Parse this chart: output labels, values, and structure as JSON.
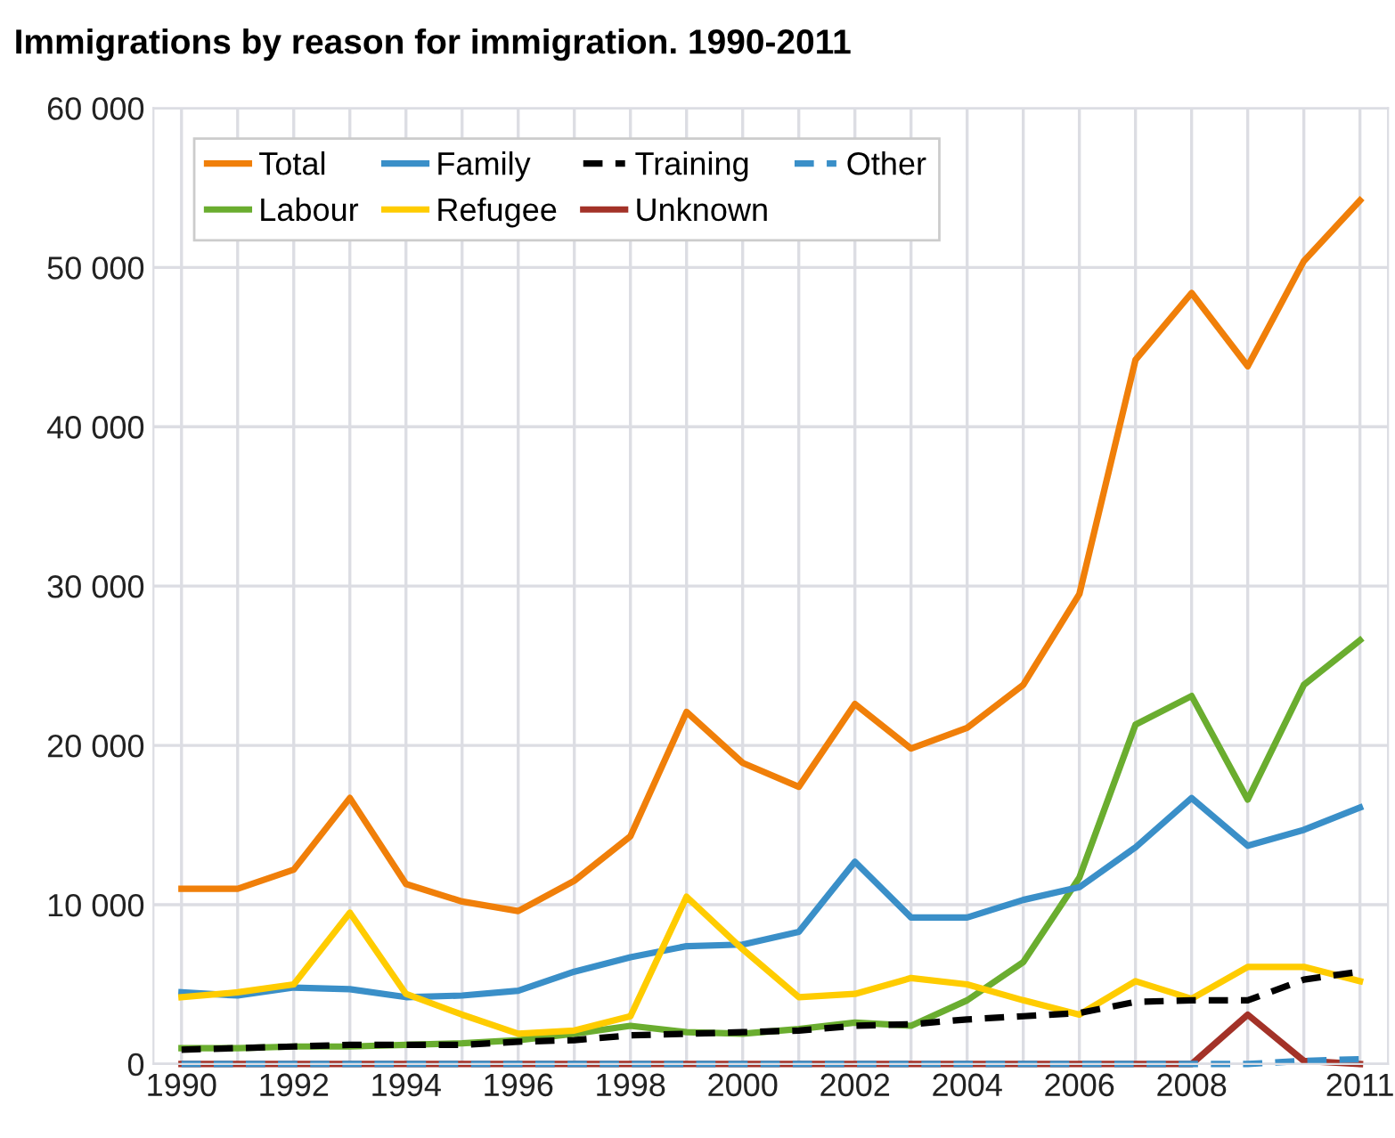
{
  "chart_data": {
    "type": "line",
    "title": "Immigrations by reason for immigration. 1990-2011",
    "x": [
      1990,
      1991,
      1992,
      1993,
      1994,
      1995,
      1996,
      1997,
      1998,
      1999,
      2000,
      2001,
      2002,
      2003,
      2004,
      2005,
      2006,
      2007,
      2008,
      2009,
      2010,
      2011
    ],
    "series": [
      {
        "name": "Total",
        "color": "#f07f09",
        "values": [
          11000,
          11000,
          12200,
          16700,
          11300,
          10200,
          9600,
          11500,
          14300,
          22100,
          18900,
          17400,
          22600,
          19800,
          21100,
          23800,
          29500,
          44200,
          48400,
          43800,
          50400,
          54200
        ]
      },
      {
        "name": "Labour",
        "color": "#6aad2f",
        "values": [
          1000,
          1000,
          1100,
          1100,
          1200,
          1300,
          1500,
          1900,
          2400,
          2000,
          1900,
          2200,
          2600,
          2400,
          4000,
          6400,
          11700,
          21300,
          23100,
          16600,
          23800,
          26600
        ]
      },
      {
        "name": "Family",
        "color": "#3a8fc8",
        "values": [
          4500,
          4300,
          4800,
          4700,
          4200,
          4300,
          4600,
          5800,
          6700,
          7400,
          7500,
          8300,
          12700,
          9200,
          9200,
          10300,
          11100,
          13600,
          16700,
          13700,
          14700,
          16100
        ]
      },
      {
        "name": "Refugee",
        "color": "#ffcc00",
        "values": [
          4200,
          4500,
          5000,
          9500,
          4400,
          3100,
          1900,
          2100,
          3000,
          10500,
          7200,
          4200,
          4400,
          5400,
          5000,
          4000,
          3100,
          5200,
          4100,
          6100,
          6100,
          5200
        ]
      },
      {
        "name": "Training",
        "color": "#000000",
        "line_style": "dashed",
        "values": [
          900,
          1000,
          1100,
          1200,
          1200,
          1200,
          1400,
          1500,
          1800,
          1900,
          2000,
          2100,
          2400,
          2500,
          2800,
          3000,
          3200,
          3900,
          4000,
          4000,
          5300,
          5800
        ]
      },
      {
        "name": "Unknown",
        "color": "#a33228",
        "values": [
          0,
          0,
          0,
          0,
          0,
          0,
          0,
          0,
          0,
          0,
          0,
          0,
          0,
          0,
          0,
          0,
          0,
          0,
          0,
          3100,
          200,
          0
        ]
      },
      {
        "name": "Other",
        "color": "#3a8fc8",
        "line_style": "dashed",
        "values": [
          0,
          0,
          0,
          0,
          0,
          0,
          0,
          0,
          0,
          0,
          0,
          0,
          0,
          0,
          0,
          0,
          0,
          0,
          0,
          0,
          200,
          300
        ]
      }
    ],
    "xlim": [
      1989.5,
      2011.5
    ],
    "xticks": [
      1990,
      {
        "value": 1991,
        "label": null
      },
      1992,
      {
        "value": 1993,
        "label": null
      },
      1994,
      {
        "value": 1995,
        "label": null
      },
      1996,
      {
        "value": 1997,
        "label": null
      },
      1998,
      {
        "value": 1999,
        "label": null
      },
      2000,
      {
        "value": 2001,
        "label": null
      },
      2002,
      {
        "value": 2003,
        "label": null
      },
      2004,
      {
        "value": 2005,
        "label": null
      },
      2006,
      {
        "value": 2007,
        "label": null
      },
      2008,
      {
        "value": 2009,
        "label": null
      },
      {
        "value": 2010,
        "label": null
      },
      2011
    ],
    "ylim": [
      0,
      60000
    ],
    "yticks": [
      {
        "value": 0,
        "label": "0"
      },
      {
        "value": 10000,
        "label": "10 000"
      },
      {
        "value": 20000,
        "label": "20 000"
      },
      {
        "value": 30000,
        "label": "30 000"
      },
      {
        "value": 40000,
        "label": "40 000"
      },
      {
        "value": 50000,
        "label": "50 000"
      },
      {
        "value": 60000,
        "label": "60 000"
      }
    ],
    "grid": true,
    "legend": "top left",
    "line_style": "solid",
    "marker": "none"
  }
}
